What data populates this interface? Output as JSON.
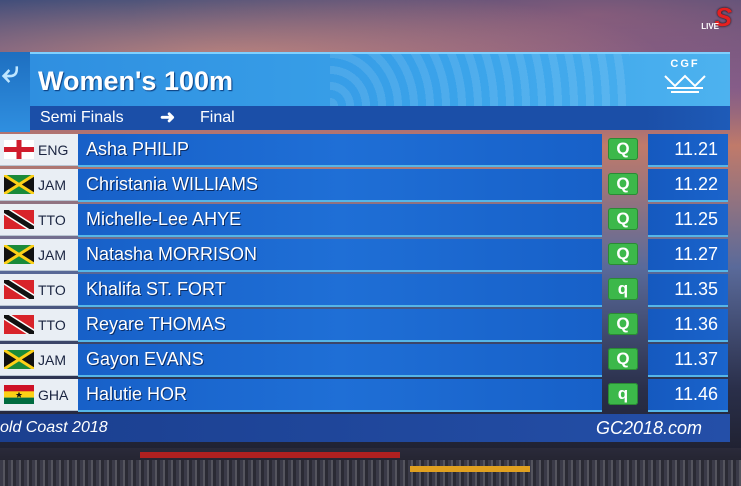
{
  "broadcaster": {
    "logo_text": "S",
    "live_label": "LIVE"
  },
  "event": {
    "title": "Women's 100m",
    "org_logo_text": "CGF"
  },
  "round": {
    "from": "Semi Finals",
    "arrow": "➜",
    "to": "Final"
  },
  "results": [
    {
      "code": "ENG",
      "name": "Asha PHILIP",
      "q": "Q",
      "time": "11.21"
    },
    {
      "code": "JAM",
      "name": "Christania WILLIAMS",
      "q": "Q",
      "time": "11.22"
    },
    {
      "code": "TTO",
      "name": "Michelle-Lee AHYE",
      "q": "Q",
      "time": "11.25"
    },
    {
      "code": "JAM",
      "name": "Natasha MORRISON",
      "q": "Q",
      "time": "11.27"
    },
    {
      "code": "TTO",
      "name": "Khalifa ST. FORT",
      "q": "q",
      "time": "11.35"
    },
    {
      "code": "TTO",
      "name": "Reyare THOMAS",
      "q": "Q",
      "time": "11.36"
    },
    {
      "code": "JAM",
      "name": "Gayon EVANS",
      "q": "Q",
      "time": "11.37"
    },
    {
      "code": "GHA",
      "name": "Halutie HOR",
      "q": "q",
      "time": "11.46"
    }
  ],
  "footer": {
    "left": "old Coast 2018",
    "right": "GC2018.com"
  },
  "colors": {
    "qualify_green": "#3cb84a",
    "row_blue": "#1760c8",
    "accent_cyan": "#55b6e8"
  }
}
